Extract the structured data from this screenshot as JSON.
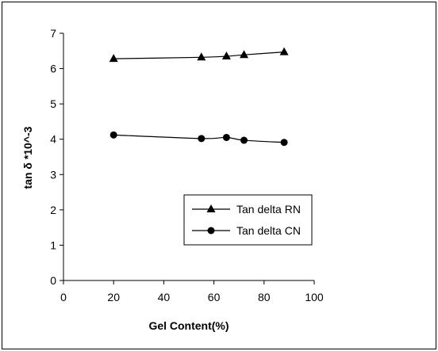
{
  "chart_data": {
    "type": "line",
    "title": "",
    "xlabel": "Gel Content(%)",
    "ylabel": "tan δ *10^-3",
    "xlim": [
      0,
      100
    ],
    "ylim": [
      0,
      7
    ],
    "xticks": [
      0,
      20,
      40,
      60,
      80,
      100
    ],
    "yticks": [
      0,
      1,
      2,
      3,
      4,
      5,
      6,
      7
    ],
    "grid": false,
    "legend_position": "center-right",
    "series": [
      {
        "name": "Tan delta RN",
        "marker": "triangle",
        "color": "#000000",
        "x": [
          20,
          55,
          65,
          72,
          88
        ],
        "y": [
          6.28,
          6.32,
          6.35,
          6.39,
          6.47
        ]
      },
      {
        "name": "Tan delta CN",
        "marker": "circle",
        "color": "#000000",
        "x": [
          20,
          55,
          65,
          72,
          88
        ],
        "y": [
          4.12,
          4.02,
          4.05,
          3.97,
          3.91
        ]
      }
    ]
  }
}
